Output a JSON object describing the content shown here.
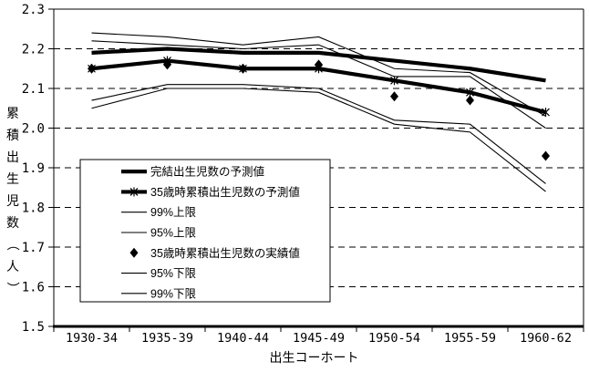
{
  "figure": {
    "colors": {
      "foreground": "#000000",
      "background": "#ffffff"
    }
  },
  "chart_data": {
    "type": "line",
    "title": "",
    "xlabel": "出生コーホート",
    "ylabel": "累積出生児数（人）",
    "categories": [
      "1930-34",
      "1935-39",
      "1940-44",
      "1945-49",
      "1950-54",
      "1955-59",
      "1960-62"
    ],
    "ylim": [
      1.5,
      2.3
    ],
    "ytick_labels": [
      "2.3",
      "2.2",
      "2.1",
      "2.0",
      "1.9",
      "1.8",
      "1.7",
      "1.6",
      "1.5"
    ],
    "grid": "horizontal-dashed",
    "legend_position": "inside-lower-left",
    "series": [
      {
        "key": "completed-forecast",
        "name": "完結出生児数の予測値",
        "line": "thick",
        "marker": "none",
        "values": [
          2.19,
          2.2,
          2.19,
          2.19,
          2.17,
          2.15,
          2.12
        ]
      },
      {
        "key": "age35-forecast",
        "name": "35歳時累積出生児数の予測値",
        "line": "thick",
        "marker": "asterisk",
        "values": [
          2.15,
          2.17,
          2.15,
          2.15,
          2.12,
          2.09,
          2.04
        ]
      },
      {
        "key": "99-upper",
        "name": "99%上限",
        "line": "thin",
        "marker": "none",
        "values": [
          2.24,
          2.23,
          2.21,
          2.23,
          2.15,
          2.14,
          2.03
        ]
      },
      {
        "key": "95-upper",
        "name": "95%上限",
        "line": "thin",
        "marker": "none",
        "values": [
          2.22,
          2.21,
          2.2,
          2.21,
          2.13,
          2.13,
          2.0
        ]
      },
      {
        "key": "age35-actual",
        "name": "35歳時累積出生児数の実績値",
        "line": "none",
        "marker": "diamond",
        "values": [
          2.15,
          2.16,
          2.15,
          2.16,
          2.08,
          2.07,
          1.93
        ]
      },
      {
        "key": "95-lower",
        "name": "95%下限",
        "line": "thin",
        "marker": "none",
        "values": [
          2.07,
          2.11,
          2.11,
          2.1,
          2.02,
          2.01,
          1.86
        ]
      },
      {
        "key": "99-lower",
        "name": "99%下限",
        "line": "thin",
        "marker": "none",
        "values": [
          2.05,
          2.1,
          2.1,
          2.09,
          2.01,
          1.99,
          1.84
        ]
      }
    ]
  }
}
